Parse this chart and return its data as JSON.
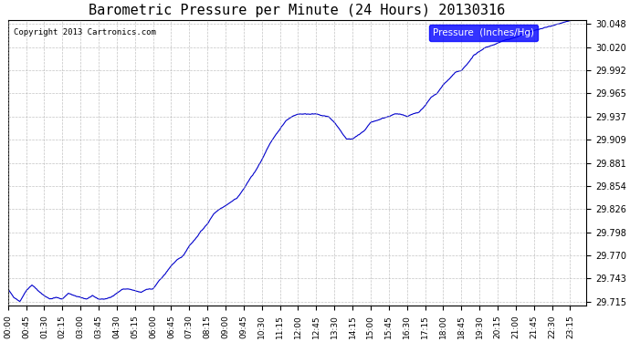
{
  "title": "Barometric Pressure per Minute (24 Hours) 20130316",
  "copyright_text": "Copyright 2013 Cartronics.com",
  "legend_label": "Pressure  (Inches/Hg)",
  "line_color": "#0000cc",
  "background_color": "#ffffff",
  "plot_bg_color": "#ffffff",
  "grid_color": "#aaaaaa",
  "ylim": [
    29.715,
    30.048
  ],
  "yticks": [
    29.715,
    29.743,
    29.77,
    29.798,
    29.826,
    29.854,
    29.881,
    29.909,
    29.937,
    29.965,
    29.992,
    30.02,
    30.048
  ],
  "xtick_labels": [
    "00:00",
    "00:45",
    "01:30",
    "02:15",
    "03:00",
    "03:45",
    "04:30",
    "05:15",
    "06:00",
    "06:45",
    "07:30",
    "08:15",
    "09:00",
    "09:45",
    "10:30",
    "11:15",
    "12:00",
    "12:45",
    "13:30",
    "14:15",
    "15:00",
    "15:45",
    "16:30",
    "17:15",
    "18:00",
    "18:45",
    "19:30",
    "20:15",
    "21:00",
    "21:45",
    "22:30",
    "23:15"
  ],
  "key_x_points": [
    0,
    15,
    30,
    45,
    60,
    75,
    90,
    105,
    120,
    135,
    150,
    165,
    180,
    195,
    210,
    225,
    240,
    255,
    270,
    285,
    300,
    315,
    330,
    345,
    360,
    375,
    390,
    405,
    420,
    435,
    450,
    465,
    480,
    495,
    510,
    525,
    540,
    555,
    570,
    585,
    600,
    615,
    630,
    645,
    660,
    675,
    690,
    705,
    720,
    735,
    750,
    765,
    780,
    795,
    810,
    825,
    840,
    855,
    870,
    885,
    900,
    915,
    930,
    945,
    960,
    975,
    990,
    1005,
    1020,
    1035,
    1050,
    1065,
    1080,
    1095,
    1110,
    1125,
    1140,
    1155,
    1170,
    1185,
    1200,
    1215,
    1230,
    1245,
    1260,
    1275,
    1290,
    1305,
    1320,
    1335,
    1350,
    1365,
    1380,
    1395,
    1410,
    1425,
    1435
  ],
  "key_y_points": [
    29.73,
    29.72,
    29.715,
    29.728,
    29.735,
    29.728,
    29.722,
    29.718,
    29.72,
    29.718,
    29.725,
    29.722,
    29.72,
    29.718,
    29.722,
    29.718,
    29.718,
    29.72,
    29.725,
    29.73,
    29.73,
    29.728,
    29.726,
    29.73,
    29.73,
    29.74,
    29.748,
    29.758,
    29.765,
    29.77,
    29.782,
    29.79,
    29.8,
    29.808,
    29.82,
    29.826,
    29.83,
    29.835,
    29.84,
    29.85,
    29.862,
    29.872,
    29.885,
    29.9,
    29.912,
    29.922,
    29.932,
    29.937,
    29.94,
    29.94,
    29.94,
    29.94,
    29.938,
    29.937,
    29.93,
    29.92,
    29.91,
    29.91,
    29.915,
    29.92,
    29.93,
    29.932,
    29.935,
    29.937,
    29.94,
    29.94,
    29.937,
    29.94,
    29.942,
    29.95,
    29.96,
    29.965,
    29.975,
    29.982,
    29.99,
    29.992,
    30.0,
    30.01,
    30.015,
    30.02,
    30.022,
    30.025,
    30.028,
    30.03,
    30.032,
    30.035,
    30.038,
    30.04,
    30.042,
    30.044,
    30.046,
    30.048,
    30.05,
    30.052,
    30.055,
    30.058,
    30.06
  ]
}
